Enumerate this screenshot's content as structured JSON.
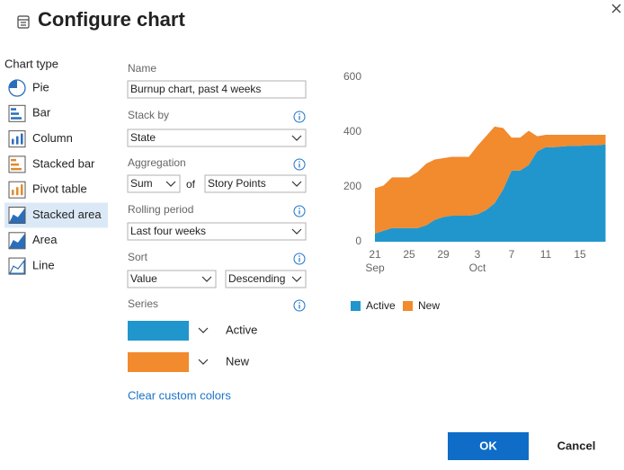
{
  "header": {
    "title": "Configure chart"
  },
  "chart_types": {
    "label": "Chart type",
    "items": [
      "Pie",
      "Bar",
      "Column",
      "Stacked bar",
      "Pivot table",
      "Stacked area",
      "Area",
      "Line"
    ],
    "selected": 5
  },
  "form": {
    "name_label": "Name",
    "name_value": "Burnup chart, past 4 weeks",
    "stack_by_label": "Stack by",
    "stack_by_value": "State",
    "aggregation_label": "Aggregation",
    "aggregation_function": "Sum",
    "aggregation_of": "of",
    "aggregation_field": "Story Points",
    "rolling_label": "Rolling period",
    "rolling_value": "Last four weeks",
    "sort_label": "Sort",
    "sort_field": "Value",
    "sort_order": "Descending",
    "series_label": "Series",
    "clear_link": "Clear custom colors"
  },
  "buttons": {
    "ok": "OK",
    "cancel": "Cancel"
  },
  "chart_data": {
    "type": "stacked_area",
    "categories": [
      "21 Sep",
      null,
      null,
      null,
      "25",
      null,
      null,
      null,
      "29",
      null,
      null,
      null,
      "3 Oct",
      null,
      null,
      null,
      "7",
      null,
      null,
      null,
      "11",
      null,
      null,
      null,
      "15",
      null,
      null,
      null
    ],
    "series": [
      {
        "name": "Active",
        "color": "#2196cc",
        "values": [
          30,
          40,
          50,
          50,
          50,
          50,
          60,
          80,
          90,
          95,
          95,
          95,
          100,
          115,
          140,
          190,
          260,
          260,
          280,
          330,
          345,
          345,
          348,
          350,
          350,
          352,
          352,
          355
        ]
      },
      {
        "name": "New",
        "color": "#f28a2e",
        "values": [
          165,
          165,
          185,
          185,
          185,
          205,
          225,
          220,
          215,
          215,
          215,
          215,
          250,
          270,
          280,
          225,
          120,
          120,
          125,
          55,
          45,
          45,
          42,
          40,
          40,
          38,
          38,
          35
        ]
      }
    ],
    "ylim": [
      0,
      600
    ],
    "yticks": [
      0,
      200,
      400,
      600
    ],
    "grid": false
  }
}
